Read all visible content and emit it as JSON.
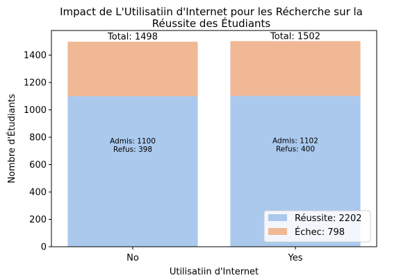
{
  "chart_data": {
    "type": "bar",
    "stacked": true,
    "title_line1": "Impact de L'Utilisatiin d'Internet pour les Récherche sur la",
    "title_line2": "Réussite des Étudiants",
    "xlabel": "Utilisatiin d'Internet",
    "ylabel": "Nombre d'Étudiants",
    "categories": [
      "No",
      "Yes"
    ],
    "series": [
      {
        "name": "Réussite",
        "values": [
          1100,
          1102
        ],
        "color": "#abc9ed"
      },
      {
        "name": "Échec",
        "values": [
          398,
          400
        ],
        "color": "#f0b894"
      }
    ],
    "totals": [
      "Total: 1498",
      "Total: 1502"
    ],
    "bar_labels": [
      {
        "line1": "Admis: 1100",
        "line2": "Refus: 398"
      },
      {
        "line1": "Admis: 1102",
        "line2": "Refus: 400"
      }
    ],
    "legend": [
      "Réussite: 2202",
      "Échec: 798"
    ],
    "legend_position": "lower-right",
    "yticks": [
      "0",
      "200",
      "400",
      "600",
      "800",
      "1000",
      "1200",
      "1400"
    ],
    "ylim": [
      0,
      1580
    ],
    "grid": false
  }
}
